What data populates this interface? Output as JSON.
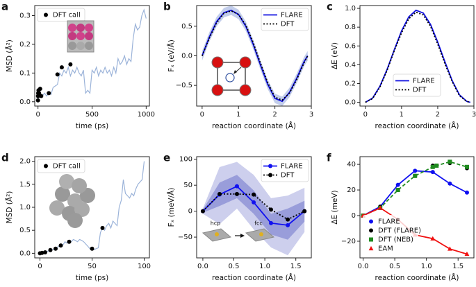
{
  "chart_data": [
    {
      "type": "line",
      "label": "a",
      "x_label": "time (ps)",
      "y_label": "MSD (Å²)",
      "xlim": [
        -30,
        1030
      ],
      "xticks": [
        0,
        500,
        1000
      ],
      "ylim": [
        -0.015,
        0.335
      ],
      "yticks": [
        {
          "value": 0,
          "label": "0.0"
        },
        {
          "value": 0.1,
          "label": "0.1"
        },
        {
          "value": 0.2,
          "label": "0.2"
        },
        {
          "value": 0.3,
          "label": "0.3"
        }
      ],
      "legend": "upper left",
      "series": [
        {
          "color": "#9bb3d9",
          "linestyle": "solid",
          "marker": "none",
          "x": [
            0,
            20,
            40,
            60,
            80,
            100,
            120,
            140,
            160,
            180,
            200,
            220,
            240,
            260,
            280,
            300,
            320,
            340,
            360,
            380,
            400,
            420,
            440,
            460,
            480,
            500,
            520,
            540,
            560,
            580,
            600,
            620,
            640,
            660,
            680,
            700,
            720,
            740,
            760,
            780,
            800,
            820,
            840,
            860,
            880,
            900,
            920,
            940,
            960,
            980,
            1000
          ],
          "values": [
            0.01,
            0.025,
            0.02,
            0.03,
            0.02,
            0.03,
            0.025,
            0.05,
            0.055,
            0.06,
            0.1,
            0.09,
            0.11,
            0.1,
            0.12,
            0.09,
            0.11,
            0.1,
            0.12,
            0.1,
            0.09,
            0.11,
            0.03,
            0.04,
            0.03,
            0.11,
            0.1,
            0.12,
            0.09,
            0.11,
            0.1,
            0.12,
            0.1,
            0.11,
            0.09,
            0.12,
            0.1,
            0.15,
            0.13,
            0.14,
            0.16,
            0.13,
            0.15,
            0.14,
            0.22,
            0.27,
            0.25,
            0.26,
            0.3,
            0.32,
            0.29
          ]
        },
        {
          "name": "DFT call",
          "color": "#000000",
          "linestyle": "none",
          "marker": "o",
          "x": [
            0,
            0,
            2,
            5,
            10,
            20,
            30,
            100,
            180,
            220,
            300
          ],
          "values": [
            0.005,
            0.02,
            0.03,
            0.04,
            0.03,
            0.045,
            0.02,
            0.03,
            0.095,
            0.12,
            0.13
          ]
        }
      ]
    },
    {
      "type": "line",
      "label": "b",
      "x_label": "reaction coordinate (Å)",
      "y_label": "Fₓ (eV/Å)",
      "xlim": [
        -0.15,
        3.0
      ],
      "xticks": [
        0,
        1,
        2,
        3
      ],
      "ylim": [
        -0.85,
        0.85
      ],
      "yticks": [
        {
          "value": -0.5,
          "label": "−0.5"
        },
        {
          "value": 0,
          "label": "0.0"
        },
        {
          "value": 0.5,
          "label": "0.5"
        }
      ],
      "legend": "upper right",
      "bands": [
        {
          "color": "#b9c6e8",
          "x": [
            0,
            0.2,
            0.4,
            0.6,
            0.8,
            1.0,
            1.2,
            1.4,
            1.6,
            1.8,
            2.0,
            2.2,
            2.4,
            2.6,
            2.8,
            2.9
          ],
          "lower": [
            -0.08,
            0.24,
            0.5,
            0.65,
            0.69,
            0.62,
            0.42,
            0.12,
            -0.23,
            -0.56,
            -0.8,
            -0.85,
            -0.7,
            -0.46,
            -0.18,
            -0.08
          ],
          "upper": [
            0.08,
            0.4,
            0.66,
            0.81,
            0.85,
            0.78,
            0.58,
            0.28,
            -0.07,
            -0.4,
            -0.64,
            -0.69,
            -0.54,
            -0.3,
            -0.02,
            0.08
          ]
        }
      ],
      "series": [
        {
          "name": "FLARE",
          "color": "#1010e0",
          "linestyle": "solid",
          "marker": "none",
          "x": [
            0,
            0.2,
            0.4,
            0.6,
            0.8,
            1.0,
            1.2,
            1.4,
            1.6,
            1.8,
            2.0,
            2.2,
            2.4,
            2.6,
            2.8,
            2.9
          ],
          "values": [
            0,
            0.32,
            0.58,
            0.73,
            0.77,
            0.7,
            0.5,
            0.2,
            -0.15,
            -0.48,
            -0.72,
            -0.77,
            -0.62,
            -0.38,
            -0.1,
            0.0
          ]
        },
        {
          "name": "DFT",
          "color": "#000000",
          "linestyle": "dotted",
          "marker": "none",
          "x": [
            0,
            0.2,
            0.4,
            0.6,
            0.8,
            1.0,
            1.2,
            1.4,
            1.6,
            1.8,
            2.0,
            2.2,
            2.4,
            2.6,
            2.8,
            2.9
          ],
          "values": [
            0,
            0.3,
            0.56,
            0.72,
            0.76,
            0.7,
            0.52,
            0.23,
            -0.12,
            -0.45,
            -0.7,
            -0.75,
            -0.63,
            -0.4,
            -0.12,
            0.0
          ]
        }
      ]
    },
    {
      "type": "line",
      "label": "c",
      "x_label": "reaction coordinate (Å)",
      "y_label": "ΔE (eV)",
      "xlim": [
        -0.15,
        3.0
      ],
      "xticks": [
        0,
        1,
        2,
        3
      ],
      "ylim": [
        -0.04,
        1.03
      ],
      "yticks": [
        {
          "value": 0,
          "label": "0.0"
        },
        {
          "value": 0.2,
          "label": "0.2"
        },
        {
          "value": 0.4,
          "label": "0.4"
        },
        {
          "value": 0.6,
          "label": "0.6"
        },
        {
          "value": 0.8,
          "label": "0.8"
        },
        {
          "value": 1,
          "label": "1.0"
        }
      ],
      "legend": "lower center",
      "series": [
        {
          "name": "FLARE",
          "color": "#1010e0",
          "linestyle": "solid",
          "marker": "none",
          "x": [
            0,
            0.2,
            0.4,
            0.6,
            0.8,
            1.0,
            1.2,
            1.4,
            1.6,
            1.8,
            2.0,
            2.2,
            2.4,
            2.6,
            2.8,
            2.9
          ],
          "values": [
            0,
            0.045,
            0.17,
            0.35,
            0.56,
            0.76,
            0.91,
            0.98,
            0.95,
            0.83,
            0.64,
            0.43,
            0.23,
            0.08,
            0.01,
            0
          ]
        },
        {
          "name": "DFT",
          "color": "#000000",
          "linestyle": "dotted",
          "marker": "none",
          "x": [
            0,
            0.2,
            0.4,
            0.6,
            0.8,
            1.0,
            1.2,
            1.4,
            1.6,
            1.8,
            2.0,
            2.2,
            2.4,
            2.6,
            2.8,
            2.9
          ],
          "values": [
            0,
            0.04,
            0.16,
            0.34,
            0.55,
            0.74,
            0.89,
            0.96,
            0.93,
            0.81,
            0.62,
            0.41,
            0.22,
            0.07,
            0.01,
            0
          ]
        }
      ]
    },
    {
      "type": "line",
      "label": "d",
      "x_label": "time (ps)",
      "y_label": "MSD (Å²)",
      "xlim": [
        -5,
        105
      ],
      "xticks": [
        0,
        50,
        100
      ],
      "ylim": [
        -0.1,
        2.1
      ],
      "yticks": [
        {
          "value": 0,
          "label": "0.0"
        },
        {
          "value": 0.5,
          "label": "0.5"
        },
        {
          "value": 1,
          "label": "1.0"
        },
        {
          "value": 1.5,
          "label": "1.5"
        },
        {
          "value": 2,
          "label": "2.0"
        }
      ],
      "legend": "upper left",
      "series": [
        {
          "color": "#9bb3d9",
          "linestyle": "solid",
          "marker": "none",
          "x": [
            0,
            2,
            4,
            6,
            8,
            10,
            12,
            14,
            16,
            18,
            20,
            22,
            24,
            26,
            28,
            30,
            32,
            34,
            36,
            38,
            40,
            42,
            44,
            46,
            48,
            50,
            52,
            54,
            56,
            58,
            60,
            62,
            64,
            66,
            68,
            70,
            72,
            74,
            76,
            78,
            80,
            82,
            84,
            86,
            88,
            90,
            92,
            94,
            96,
            98,
            100
          ],
          "values": [
            0,
            0.01,
            0.02,
            0.03,
            0.05,
            0.07,
            0.08,
            0.1,
            0.12,
            0.15,
            0.2,
            0.18,
            0.25,
            0.22,
            0.28,
            0.25,
            0.3,
            0.28,
            0.25,
            0.3,
            0.28,
            0.25,
            0.2,
            0.15,
            0.1,
            0.12,
            0.08,
            0.1,
            0.12,
            0.45,
            0.55,
            0.5,
            0.6,
            0.65,
            0.55,
            0.7,
            0.65,
            0.6,
            1.0,
            1.15,
            1.6,
            1.3,
            1.25,
            1.2,
            1.3,
            1.25,
            1.4,
            1.5,
            1.55,
            1.6,
            2.0
          ]
        },
        {
          "name": "DFT call",
          "color": "#000000",
          "linestyle": "none",
          "marker": "o",
          "x": [
            0,
            2,
            5,
            10,
            15,
            20,
            28,
            50,
            60
          ],
          "values": [
            0,
            0.01,
            0.02,
            0.07,
            0.1,
            0.17,
            0.25,
            0.1,
            0.55
          ]
        }
      ]
    },
    {
      "type": "line",
      "label": "e",
      "x_label": "reaction coordinate (Å)",
      "y_label": "Fₓ (meV/Å)",
      "xlim": [
        -0.1,
        1.75
      ],
      "xticks": [
        {
          "value": 0,
          "label": "0.0"
        },
        {
          "value": 0.5,
          "label": "0.5"
        },
        {
          "value": 1,
          "label": "1.0"
        },
        {
          "value": 1.5,
          "label": "1.5"
        }
      ],
      "ylim": [
        -90,
        105
      ],
      "yticks": [
        {
          "value": -50,
          "label": "−50"
        },
        0,
        50,
        100
      ],
      "legend": "upper right",
      "annotations": [
        "hcp",
        "fcc"
      ],
      "bands": [
        {
          "color": "#c4c7ea",
          "x": [
            0,
            0.27,
            0.55,
            0.82,
            1.1,
            1.37,
            1.64
          ],
          "lower": [
            -5,
            -25,
            5,
            -35,
            -70,
            -85,
            -40
          ],
          "upper": [
            5,
            85,
            95,
            70,
            25,
            30,
            45
          ]
        },
        {
          "color": "#8f94d6",
          "x": [
            0,
            0.27,
            0.55,
            0.82,
            1.1,
            1.37,
            1.64
          ],
          "lower": [
            -3,
            10,
            25,
            -5,
            -45,
            -55,
            -20
          ],
          "upper": [
            3,
            55,
            70,
            40,
            -5,
            5,
            20
          ]
        }
      ],
      "series": [
        {
          "name": "FLARE",
          "color": "#1010f0",
          "linestyle": "solid",
          "marker": "o",
          "x": [
            0,
            0.27,
            0.55,
            0.82,
            1.1,
            1.37,
            1.64
          ],
          "values": [
            0,
            32,
            48,
            17,
            -23,
            -27,
            0
          ]
        },
        {
          "name": "DFT",
          "color": "#000000",
          "linestyle": "dotted",
          "marker": "o",
          "x": [
            0,
            0.27,
            0.55,
            0.82,
            1.1,
            1.37,
            1.64
          ],
          "values": [
            0,
            33,
            33,
            32,
            3,
            -16,
            0
          ]
        }
      ]
    },
    {
      "type": "line",
      "label": "f",
      "x_label": "reaction coordinate (Å)",
      "y_label": "ΔE (meV)",
      "xlim": [
        -0.05,
        1.75
      ],
      "xticks": [
        {
          "value": 0,
          "label": "0.0"
        },
        {
          "value": 0.5,
          "label": "0.5"
        },
        {
          "value": 1,
          "label": "1.0"
        },
        {
          "value": 1.5,
          "label": "1.5"
        }
      ],
      "ylim": [
        -33,
        46
      ],
      "yticks": [
        {
          "value": -20,
          "label": "−20"
        },
        0,
        20,
        40
      ],
      "legend": "lower left",
      "series": [
        {
          "name": "FLARE",
          "color": "#1010f0",
          "linestyle": "solid",
          "marker": "o",
          "x": [
            0,
            0.27,
            0.55,
            0.82,
            1.1,
            1.37,
            1.64
          ],
          "values": [
            0,
            7,
            24,
            35,
            34,
            25,
            18
          ]
        },
        {
          "name": "DFT (FLARE)",
          "color": "#000000",
          "linestyle": "none",
          "marker": "o",
          "x": [
            0,
            0.27,
            0.55,
            0.82,
            1.1,
            1.37,
            1.64
          ],
          "values": [
            0,
            7,
            20,
            31,
            39,
            41,
            37
          ]
        },
        {
          "name": "DFT (NEB)",
          "color": "#1f8a1f",
          "linestyle": "dashed",
          "marker": "s",
          "x": [
            0,
            0.27,
            0.55,
            0.82,
            1.1,
            1.16,
            1.37,
            1.64
          ],
          "values": [
            0,
            6,
            20,
            31,
            38,
            39,
            42,
            38
          ]
        },
        {
          "name": "EAM",
          "color": "#f01010",
          "linestyle": "solid",
          "marker": "^",
          "x": [
            0,
            0.27,
            0.55,
            0.82,
            1.1,
            1.37,
            1.64
          ],
          "values": [
            0,
            6,
            -3,
            -15,
            -18,
            -26,
            -30
          ]
        }
      ]
    }
  ]
}
